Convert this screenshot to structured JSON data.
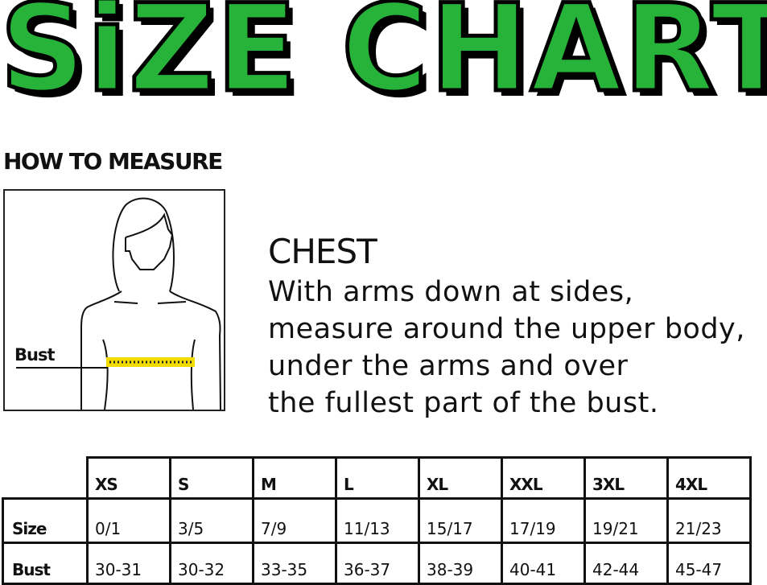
{
  "title": "SiZE CHART",
  "how_to_measure": "HOW TO MEASURE",
  "figure": {
    "label": "Bust",
    "tape_color": "#f2dc00"
  },
  "chest": {
    "heading": "CHEST",
    "lines": [
      "With arms down at sides,",
      "measure around the upper body,",
      "under the arms and over",
      "the fullest part of the bust."
    ]
  },
  "table": {
    "headers": [
      "XS",
      "S",
      "M",
      "L",
      "XL",
      "XXL",
      "3XL",
      "4XL"
    ],
    "rows": [
      {
        "label": "Size",
        "values": [
          "0/1",
          "3/5",
          "7/9",
          "11/13",
          "15/17",
          "17/19",
          "19/21",
          "21/23"
        ]
      },
      {
        "label": "Bust",
        "values": [
          "30-31",
          "30-32",
          "33-35",
          "36-37",
          "38-39",
          "40-41",
          "42-44",
          "45-47"
        ]
      }
    ]
  },
  "colors": {
    "title_green": "#27b33a"
  }
}
